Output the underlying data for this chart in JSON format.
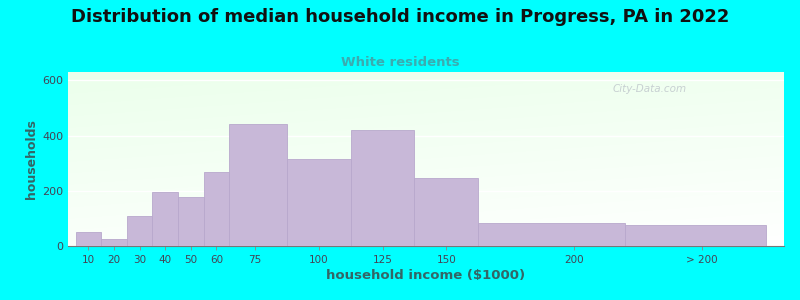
{
  "title": "Distribution of median household income in Progress, PA in 2022",
  "subtitle": "White residents",
  "xlabel": "household income ($1000)",
  "ylabel": "households",
  "background_color": "#00FFFF",
  "bar_color": "#c8b8d8",
  "bar_edge_color": "#b8a8cc",
  "title_fontsize": 13,
  "subtitle_fontsize": 9.5,
  "subtitle_color": "#3aacb0",
  "axis_label_color": "#336666",
  "tick_color": "#444455",
  "ylim": [
    0,
    630
  ],
  "yticks": [
    0,
    200,
    400,
    600
  ],
  "tick_labels": [
    "10",
    "20",
    "30",
    "40",
    "50",
    "60",
    "75",
    "100",
    "125",
    "150",
    "200",
    "> 200"
  ],
  "values": [
    50,
    25,
    108,
    195,
    178,
    268,
    440,
    315,
    420,
    245,
    82,
    75
  ],
  "bar_lefts": [
    5,
    15,
    25,
    35,
    45,
    55,
    65,
    87.5,
    112.5,
    137.5,
    162.5,
    220
  ],
  "bar_widths": [
    10,
    10,
    10,
    10,
    10,
    10,
    22.5,
    25,
    25,
    25,
    57.5,
    55
  ],
  "tick_positions": [
    10,
    20,
    30,
    40,
    50,
    60,
    75,
    100,
    125,
    150,
    200,
    250
  ],
  "xlim": [
    2,
    282
  ],
  "watermark": "City-Data.com"
}
